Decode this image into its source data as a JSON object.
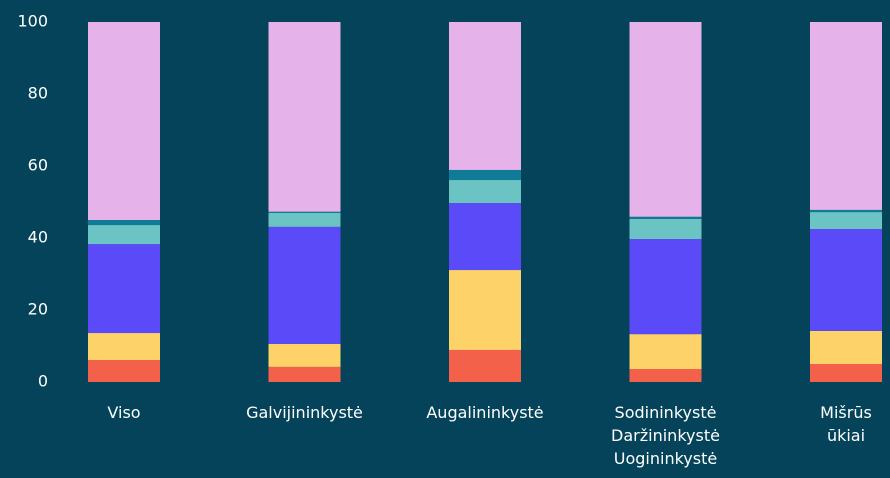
{
  "chart_data": {
    "type": "stacked_bar",
    "categories": [
      "Viso",
      "Galvijininkystė",
      "Augalininkystė",
      "Sodininkystė\nDaržininkystė\nUogininkystė",
      "Mišrūs\nūkiai"
    ],
    "series": [
      {
        "color": "#f4614a",
        "values": [
          6.1,
          4.2,
          8.9,
          3.6,
          5.0
        ]
      },
      {
        "color": "#fdd268",
        "values": [
          7.5,
          6.4,
          22.2,
          9.7,
          9.2
        ]
      },
      {
        "color": "#5a4af8",
        "values": [
          24.7,
          32.5,
          18.6,
          26.4,
          28.3
        ]
      },
      {
        "color": "#6cc3c3",
        "values": [
          5.3,
          3.9,
          6.4,
          5.6,
          4.7
        ]
      },
      {
        "color": "#0f7b96",
        "values": [
          1.4,
          0.3,
          2.8,
          0.6,
          0.6
        ]
      },
      {
        "color": "#e5b3ea",
        "values": [
          55.0,
          52.7,
          41.1,
          54.1,
          52.2
        ]
      }
    ],
    "ylim": [
      0,
      100
    ],
    "yticks": [
      0,
      20,
      40,
      60,
      80,
      100
    ]
  }
}
